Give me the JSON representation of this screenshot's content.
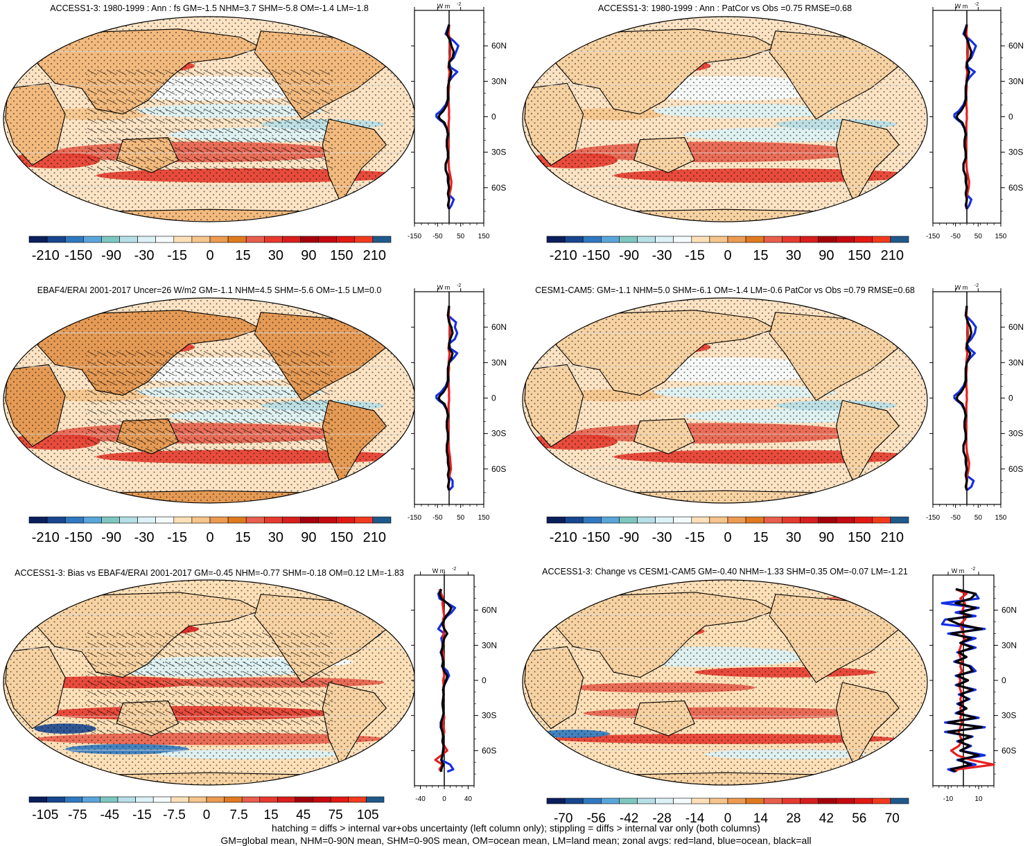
{
  "colors": {
    "palette_diverging": [
      "#0b1f5c",
      "#18468f",
      "#2f79c0",
      "#5aa6db",
      "#7ec7c1",
      "#b7dfe8",
      "#dcf2f6",
      "#f5fbfd",
      "#fde0b8",
      "#f6c58d",
      "#ec9b51",
      "#e07a21",
      "#e85f4d",
      "#e63a2e",
      "#d81e1e",
      "#a5000b",
      "#c50a10",
      "#e21a14",
      "#f23b1e",
      "#1f5a8c"
    ],
    "land_line": "#e62020",
    "ocean_line": "#1430e6",
    "all_line": "#000000",
    "map_base": "#f7d2a2",
    "map_outline": "#000000"
  },
  "chart_data": [
    {
      "type": "heatmap",
      "title": "ACCESS1-3: 1980-1999 : Ann : fs GM=-1.5 NHM=3.7 SHM=-5.8 OM=-1.4 LM=-1.8",
      "colorbar_labels": [
        "-210",
        "-150",
        "-90",
        "-30",
        "-15",
        "0",
        "15",
        "30",
        "90",
        "150",
        "210"
      ],
      "zonal": {
        "unit": "W m",
        "unit_sup": "-2",
        "xticks": [
          "-150",
          "-50",
          "50",
          "150"
        ],
        "xlim": [
          -150,
          150
        ],
        "lat_labels": [
          "60N",
          "30N",
          "0",
          "30S",
          "60S"
        ],
        "lat": [
          78,
          70,
          64,
          60,
          55,
          50,
          46,
          42,
          38,
          34,
          30,
          25,
          20,
          15,
          10,
          5,
          2,
          0,
          -2,
          -5,
          -10,
          -15,
          -20,
          -25,
          -30,
          -35,
          -40,
          -45,
          -50,
          -55,
          -60,
          -65,
          -70,
          -75,
          -78
        ],
        "all": [
          0,
          -10,
          5,
          10,
          20,
          15,
          0,
          0,
          10,
          5,
          0,
          -5,
          -5,
          -5,
          -10,
          -25,
          -40,
          -45,
          -40,
          -20,
          -10,
          -5,
          -10,
          -10,
          -5,
          -5,
          -15,
          -15,
          -5,
          -5,
          0,
          -5,
          0,
          -5,
          0
        ],
        "ocean": [
          0,
          -15,
          20,
          40,
          30,
          20,
          0,
          5,
          35,
          15,
          0,
          -5,
          -5,
          -5,
          -15,
          -35,
          -55,
          -55,
          -45,
          -25,
          -10,
          -5,
          -10,
          -10,
          -5,
          -5,
          -15,
          -15,
          -5,
          -5,
          0,
          -5,
          20,
          10,
          0
        ],
        "land": [
          0,
          -2,
          5,
          3,
          5,
          3,
          0,
          -3,
          2,
          0,
          -2,
          0,
          -3,
          -5,
          -2,
          0,
          -1,
          0,
          0,
          -2,
          -3,
          -5,
          -4,
          -2,
          -3,
          -4,
          -2,
          0,
          5,
          10,
          8,
          2,
          0,
          -3,
          0
        ]
      }
    },
    {
      "type": "heatmap",
      "title": "ACCESS1-3: 1980-1999 : Ann : PatCor vs Obs =0.75 RMSE=0.68",
      "colorbar_labels": [
        "-210",
        "-150",
        "-90",
        "-30",
        "-15",
        "0",
        "15",
        "30",
        "90",
        "150",
        "210"
      ],
      "zonal": {
        "unit": "W m",
        "unit_sup": "-2",
        "xticks": [
          "-150",
          "-50",
          "50",
          "150"
        ],
        "xlim": [
          -150,
          150
        ],
        "lat_labels": [
          "60N",
          "30N",
          "0",
          "30S",
          "60S"
        ],
        "lat": [
          78,
          70,
          64,
          60,
          55,
          50,
          46,
          42,
          38,
          34,
          30,
          25,
          20,
          15,
          10,
          5,
          2,
          0,
          -2,
          -5,
          -10,
          -15,
          -20,
          -25,
          -30,
          -35,
          -40,
          -45,
          -50,
          -55,
          -60,
          -65,
          -70,
          -75,
          -78
        ],
        "all": [
          0,
          -10,
          5,
          10,
          20,
          15,
          0,
          0,
          10,
          5,
          0,
          -5,
          -5,
          -5,
          -10,
          -25,
          -40,
          -45,
          -40,
          -20,
          -10,
          -5,
          -10,
          -10,
          -5,
          -5,
          -15,
          -15,
          -5,
          -5,
          0,
          -5,
          0,
          -5,
          0
        ],
        "ocean": [
          0,
          -15,
          20,
          40,
          30,
          20,
          0,
          5,
          35,
          15,
          0,
          -5,
          -5,
          -5,
          -15,
          -35,
          -55,
          -55,
          -45,
          -25,
          -10,
          -5,
          -10,
          -10,
          -5,
          -5,
          -15,
          -15,
          -5,
          -5,
          0,
          -5,
          20,
          10,
          0
        ],
        "land": [
          0,
          -2,
          5,
          3,
          5,
          3,
          0,
          -3,
          2,
          0,
          -2,
          0,
          -3,
          -5,
          -2,
          0,
          -1,
          0,
          0,
          -2,
          -3,
          -5,
          -4,
          -2,
          -3,
          -4,
          -2,
          0,
          5,
          10,
          8,
          2,
          0,
          -3,
          0
        ]
      }
    },
    {
      "type": "heatmap",
      "title": "EBAF4/ERAI 2001-2017 Uncer=26 W/m2 GM=-1.1 NHM=4.5 SHM=-5.6 OM=-1.5 LM=0.0",
      "colorbar_labels": [
        "-210",
        "-150",
        "-90",
        "-30",
        "-15",
        "0",
        "15",
        "30",
        "90",
        "150",
        "210"
      ],
      "zonal": {
        "unit": "W m",
        "unit_sup": "-2",
        "xticks": [
          "-150",
          "-50",
          "50",
          "150"
        ],
        "xlim": [
          -150,
          150
        ],
        "lat_labels": [
          "60N",
          "30N",
          "0",
          "30S",
          "60S"
        ],
        "lat": [
          78,
          70,
          64,
          60,
          55,
          50,
          46,
          42,
          38,
          34,
          30,
          25,
          20,
          15,
          10,
          5,
          2,
          0,
          -2,
          -5,
          -10,
          -15,
          -20,
          -25,
          -30,
          -35,
          -40,
          -45,
          -50,
          -55,
          -60,
          -65,
          -70,
          -75,
          -78
        ],
        "all": [
          0,
          -5,
          0,
          10,
          15,
          5,
          0,
          0,
          15,
          10,
          0,
          -5,
          -5,
          -5,
          -10,
          -25,
          -40,
          -45,
          -40,
          -20,
          -10,
          -5,
          -10,
          -10,
          -5,
          -5,
          -10,
          -10,
          -5,
          -5,
          0,
          -5,
          0,
          -5,
          0
        ],
        "ocean": [
          0,
          -5,
          30,
          25,
          35,
          25,
          0,
          5,
          35,
          20,
          0,
          -5,
          -5,
          -5,
          -15,
          -35,
          -55,
          -55,
          -45,
          -25,
          -10,
          -5,
          -10,
          -10,
          -5,
          -5,
          -10,
          -10,
          -5,
          -5,
          0,
          -5,
          15,
          15,
          0
        ],
        "land": [
          0,
          -2,
          2,
          3,
          4,
          3,
          0,
          -3,
          2,
          0,
          -2,
          0,
          -3,
          -5,
          -2,
          0,
          -1,
          0,
          0,
          -2,
          -3,
          -5,
          -4,
          -2,
          -3,
          -4,
          -2,
          0,
          4,
          6,
          8,
          2,
          0,
          -3,
          0
        ]
      }
    },
    {
      "type": "heatmap",
      "title": "CESM1-CAM5: GM=-1.1 NHM=5.0 SHM=-6.1 OM=-1.4 LM=-0.6 PatCor vs Obs =0.79 RMSE=0.68",
      "colorbar_labels": [
        "-210",
        "-150",
        "-90",
        "-30",
        "-15",
        "0",
        "15",
        "30",
        "90",
        "150",
        "210"
      ],
      "zonal": {
        "unit": "W m",
        "unit_sup": "-2",
        "xticks": [
          "-150",
          "-50",
          "50",
          "150"
        ],
        "xlim": [
          -150,
          150
        ],
        "lat_labels": [
          "60N",
          "30N",
          "0",
          "30S",
          "60S"
        ],
        "lat": [
          78,
          70,
          64,
          60,
          55,
          50,
          46,
          42,
          38,
          34,
          30,
          25,
          20,
          15,
          10,
          5,
          2,
          0,
          -2,
          -5,
          -10,
          -15,
          -20,
          -25,
          -30,
          -35,
          -40,
          -45,
          -50,
          -55,
          -60,
          -65,
          -70,
          -75,
          -78
        ],
        "all": [
          0,
          -5,
          5,
          15,
          20,
          10,
          0,
          0,
          15,
          10,
          0,
          -5,
          -5,
          -5,
          -10,
          -25,
          -40,
          -45,
          -40,
          -20,
          -10,
          -5,
          -10,
          -10,
          -5,
          -5,
          -15,
          -15,
          -5,
          -5,
          0,
          -5,
          0,
          -5,
          0
        ],
        "ocean": [
          0,
          -5,
          25,
          40,
          35,
          20,
          0,
          10,
          35,
          15,
          0,
          -5,
          -5,
          -5,
          -15,
          -35,
          -55,
          -55,
          -45,
          -25,
          -10,
          -5,
          -10,
          -10,
          -5,
          -5,
          -15,
          -15,
          -5,
          -5,
          0,
          -5,
          30,
          20,
          0
        ],
        "land": [
          0,
          -2,
          5,
          3,
          5,
          3,
          0,
          -3,
          2,
          0,
          -2,
          0,
          -3,
          -5,
          -2,
          0,
          -1,
          0,
          0,
          -2,
          -3,
          -5,
          -4,
          -2,
          -3,
          -4,
          -2,
          0,
          5,
          10,
          8,
          2,
          0,
          -3,
          0
        ]
      }
    },
    {
      "type": "heatmap",
      "title": "ACCESS1-3: Bias vs EBAF4/ERAI 2001-2017 GM=-0.45 NHM=-0.77 SHM=-0.18 OM=0.12 LM=-1.83",
      "colorbar_labels": [
        "-105",
        "-75",
        "-45",
        "-15",
        "-7.5",
        "0",
        "7.5",
        "15",
        "45",
        "75",
        "105"
      ],
      "zonal": {
        "unit": "W m",
        "unit_sup": "-2",
        "xticks": [
          "-40",
          "0",
          "40"
        ],
        "xlim": [
          -50,
          50
        ],
        "lat_labels": [
          "60N",
          "30N",
          "0",
          "30S",
          "60S"
        ],
        "lat": [
          78,
          74,
          70,
          66,
          62,
          58,
          55,
          52,
          48,
          44,
          40,
          36,
          32,
          28,
          24,
          20,
          16,
          12,
          8,
          4,
          0,
          -4,
          -8,
          -12,
          -16,
          -20,
          -24,
          -28,
          -32,
          -36,
          -40,
          -44,
          -48,
          -52,
          -56,
          -60,
          -64,
          -68,
          -72,
          -76,
          -78
        ],
        "all": [
          -5,
          -8,
          -5,
          5,
          12,
          8,
          3,
          0,
          -3,
          0,
          5,
          0,
          -2,
          -3,
          -5,
          -3,
          -2,
          -3,
          0,
          5,
          3,
          0,
          -2,
          -1,
          -2,
          -3,
          -2,
          -1,
          -3,
          -5,
          -5,
          -3,
          -2,
          -3,
          -1,
          -2,
          -3,
          -5,
          -2,
          -5,
          -5
        ],
        "ocean": [
          -5,
          -10,
          -8,
          5,
          18,
          12,
          5,
          0,
          -5,
          -10,
          0,
          -5,
          -3,
          -3,
          -6,
          -3,
          -2,
          -4,
          5,
          8,
          4,
          0,
          -2,
          -1,
          -2,
          -3,
          -2,
          -1,
          -3,
          -6,
          -6,
          -3,
          -2,
          -3,
          -1,
          -2,
          -3,
          -5,
          10,
          15,
          5
        ],
        "land": [
          -8,
          -5,
          -2,
          -3,
          -2,
          -1,
          0,
          -2,
          -1,
          0,
          -1,
          -2,
          -1,
          -3,
          -2,
          -1,
          -2,
          -3,
          -1,
          0,
          -2,
          -1,
          -2,
          -1,
          -2,
          -3,
          -2,
          -1,
          0,
          -2,
          -1,
          0,
          -2,
          -3,
          0,
          5,
          -5,
          -15,
          -3,
          -8,
          -5
        ]
      }
    },
    {
      "type": "heatmap",
      "title": "ACCESS1-3: Change vs CESM1-CAM5 GM=-0.40 NHM=-1.33 SHM=0.35 OM=-0.07 LM=-1.21",
      "colorbar_labels": [
        "-70",
        "-56",
        "-42",
        "-28",
        "-14",
        "0",
        "14",
        "28",
        "42",
        "56",
        "70"
      ],
      "zonal": {
        "unit": "W m",
        "unit_sup": "-2",
        "xticks": [
          "-10",
          "10"
        ],
        "xlim": [
          -20,
          20
        ],
        "lat_labels": [
          "60N",
          "30N",
          "0",
          "30S",
          "60S"
        ],
        "lat": [
          78,
          74,
          70,
          66,
          62,
          58,
          55,
          52,
          48,
          44,
          40,
          36,
          32,
          28,
          24,
          20,
          16,
          12,
          8,
          4,
          0,
          -4,
          -8,
          -12,
          -16,
          -20,
          -24,
          -28,
          -32,
          -36,
          -40,
          -44,
          -48,
          -52,
          -56,
          -60,
          -64,
          -68,
          -72,
          -76,
          -78
        ],
        "all": [
          -5,
          8,
          5,
          -5,
          8,
          -2,
          5,
          -10,
          -3,
          12,
          -8,
          5,
          -2,
          6,
          -3,
          2,
          -5,
          4,
          6,
          -4,
          3,
          -4,
          6,
          -2,
          3,
          -3,
          2,
          -4,
          8,
          -10,
          12,
          -10,
          5,
          -3,
          4,
          -2,
          10,
          -3,
          5,
          -8,
          -5
        ],
        "ocean": [
          -5,
          8,
          10,
          -14,
          10,
          -5,
          8,
          -12,
          -14,
          14,
          -10,
          8,
          -2,
          8,
          -4,
          2,
          -6,
          5,
          8,
          -5,
          3,
          -5,
          8,
          -3,
          4,
          -4,
          2,
          -5,
          10,
          -12,
          14,
          -12,
          6,
          -4,
          5,
          -2,
          14,
          -4,
          8,
          -10,
          -6
        ],
        "land": [
          -5,
          2,
          -2,
          1,
          0,
          -1,
          2,
          1,
          -2,
          -1,
          0,
          1,
          -1,
          -2,
          -3,
          -2,
          -1,
          -2,
          -1,
          -3,
          -2,
          -3,
          -2,
          -1,
          -2,
          -1,
          -2,
          -1,
          -2,
          -1,
          -2,
          -3,
          -2,
          -1,
          -3,
          -8,
          -4,
          5,
          20,
          -4,
          -5
        ]
      }
    }
  ],
  "footer": {
    "line1": "hatching = diffs > internal var+obs uncertainty (left column only); stippling = diffs > internal var only (both columns)",
    "line2": "GM=global mean, NHM=0-90N mean, SHM=0-90S mean, OM=ocean mean, LM=land mean; zonal avgs: red=land, blue=ocean, black=all"
  }
}
